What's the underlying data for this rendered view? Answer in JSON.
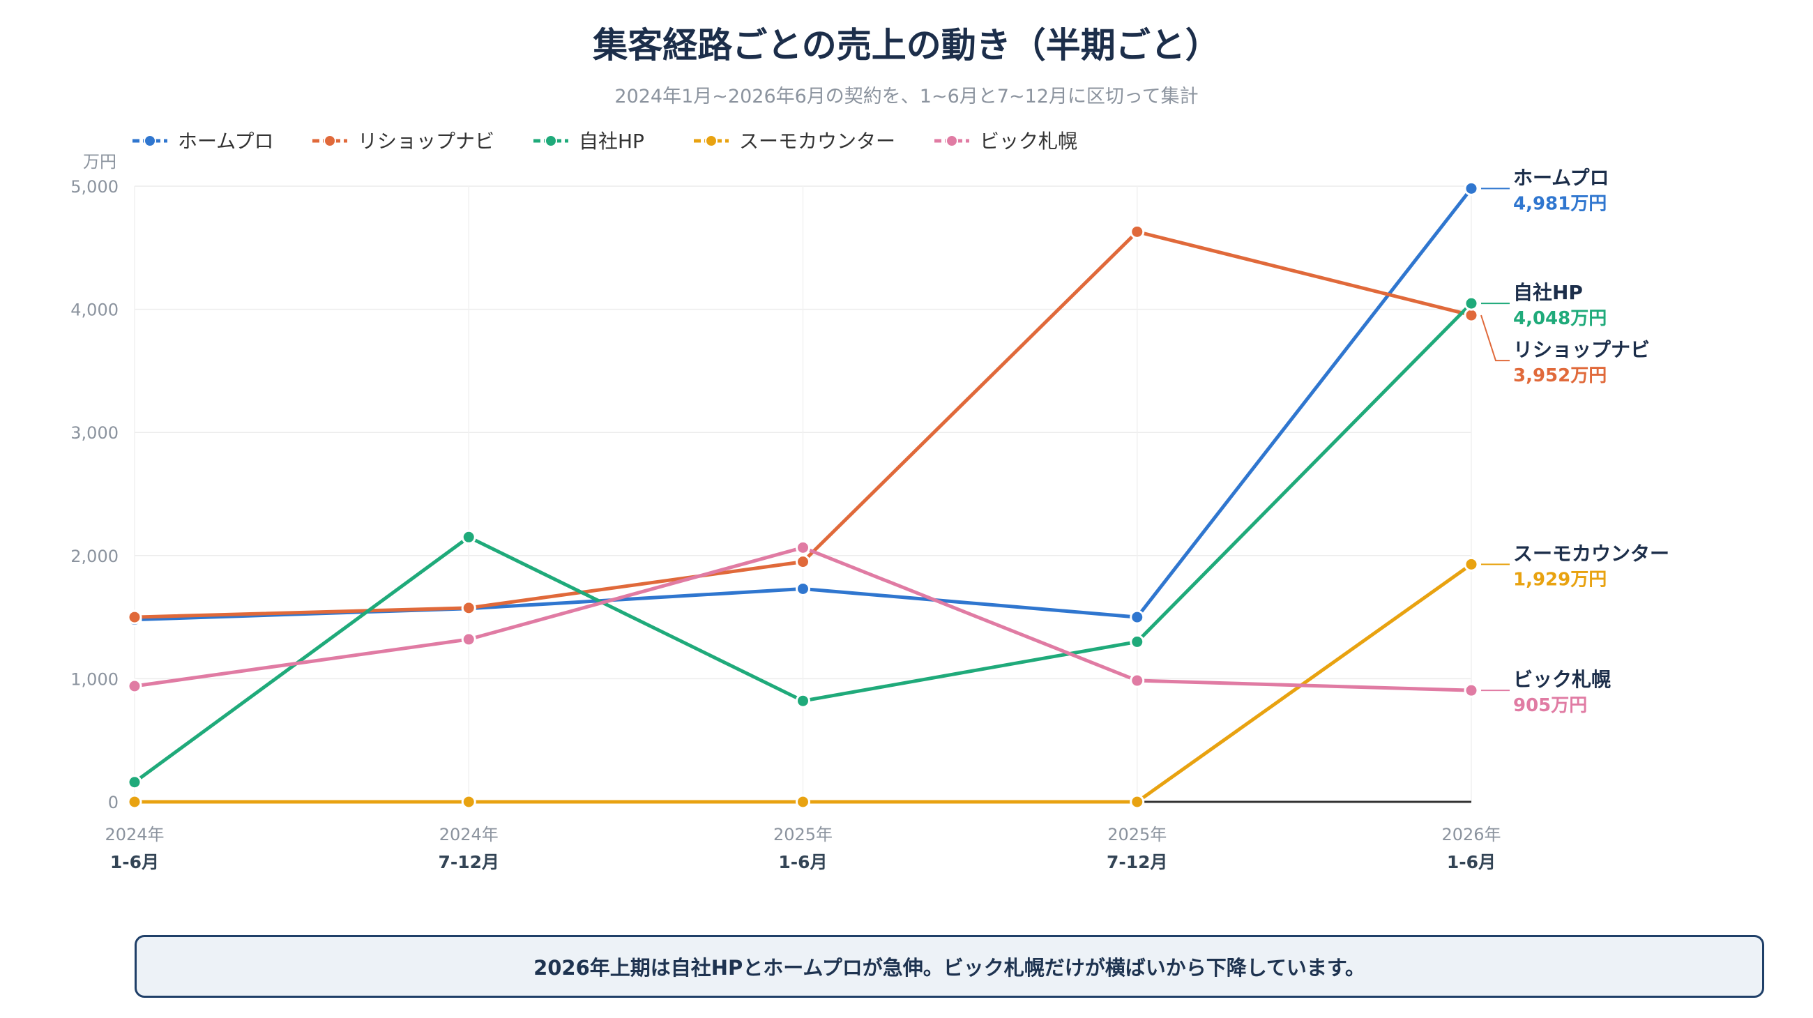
{
  "chart_data": {
    "type": "line",
    "title": "集客経路ごとの売上の動き（半期ごと）",
    "subtitle": "2024年1月~2026年6月の契約を、1~6月と7~12月に区切って集計",
    "y_unit_label": "万円",
    "ylim": [
      0,
      5000
    ],
    "y_ticks": [
      0,
      1000,
      2000,
      3000,
      4000,
      5000
    ],
    "y_tick_labels": [
      "0",
      "1,000",
      "2,000",
      "3,000",
      "4,000",
      "5,000"
    ],
    "x": [
      {
        "year": "2024年",
        "period": "1-6月"
      },
      {
        "year": "2024年",
        "period": "7-12月"
      },
      {
        "year": "2025年",
        "period": "1-6月"
      },
      {
        "year": "2025年",
        "period": "7-12月"
      },
      {
        "year": "2026年",
        "period": "1-6月"
      }
    ],
    "grid": true,
    "legend_position": "top-left",
    "series": [
      {
        "name": "ホームプロ",
        "color": "#2f76cf",
        "values": [
          1480,
          1570,
          1730,
          1500,
          4981
        ],
        "end_label": "4,981万円"
      },
      {
        "name": "リショップナビ",
        "color": "#e0693a",
        "values": [
          1500,
          1575,
          1950,
          4630,
          3952
        ],
        "end_label": "3,952万円"
      },
      {
        "name": "自社HP",
        "color": "#1faa7a",
        "values": [
          160,
          2150,
          820,
          1300,
          4048
        ],
        "end_label": "4,048万円"
      },
      {
        "name": "スーモカウンター",
        "color": "#e8a210",
        "values": [
          0,
          0,
          0,
          0,
          1929
        ],
        "end_label": "1,929万円"
      },
      {
        "name": "ビック札幌",
        "color": "#e07ba3",
        "values": [
          940,
          1320,
          2065,
          985,
          905
        ],
        "end_label": "905万円"
      }
    ]
  },
  "note": "2026年上期は自社HPとホームプロが急伸。ビック札幌だけが横ばいから下降しています。"
}
